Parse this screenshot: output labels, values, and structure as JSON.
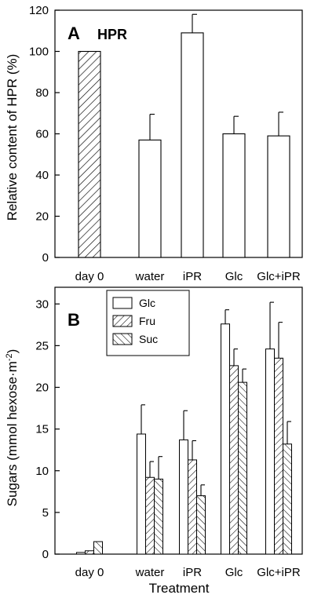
{
  "chart_data": [
    {
      "type": "bar",
      "panel": "A",
      "title": "HPR",
      "ylabel": "Relative content of HPR (%)",
      "xlabel": "",
      "ylim": [
        0,
        120
      ],
      "yticks": [
        0,
        20,
        40,
        60,
        80,
        100,
        120
      ],
      "categories": [
        "day 0",
        "water",
        "iPR",
        "Glc",
        "Glc+iPR"
      ],
      "values": [
        100,
        57,
        109,
        60,
        59
      ],
      "errors": [
        0,
        12.5,
        9,
        8.5,
        11.5
      ],
      "patterns": [
        "hatch-fwd",
        "none",
        "none",
        "none",
        "none"
      ]
    },
    {
      "type": "bar",
      "panel": "B",
      "title": "",
      "ylabel": "Sugars (mmol hexose·m",
      "ylabel_superscript": "-2",
      "ylabel_close": ")",
      "xlabel": "Treatment",
      "ylim": [
        0,
        32
      ],
      "yticks": [
        0,
        5,
        10,
        15,
        20,
        25,
        30
      ],
      "categories": [
        "day 0",
        "water",
        "iPR",
        "Glc",
        "Glc+iPR"
      ],
      "legend_position": "top-left",
      "series": [
        {
          "name": "Glc",
          "pattern": "none",
          "values": [
            0.2,
            14.4,
            13.7,
            27.6,
            24.6
          ],
          "errors": [
            0,
            3.5,
            3.5,
            1.7,
            5.6
          ]
        },
        {
          "name": "Fru",
          "pattern": "hatch-fwd",
          "values": [
            0.4,
            9.2,
            11.3,
            22.6,
            23.5
          ],
          "errors": [
            0,
            1.9,
            2.3,
            2.0,
            4.3
          ]
        },
        {
          "name": "Suc",
          "pattern": "hatch-back",
          "values": [
            1.5,
            9.0,
            7.0,
            20.6,
            13.2
          ],
          "errors": [
            0,
            2.7,
            1.3,
            1.6,
            2.7
          ]
        }
      ]
    }
  ]
}
